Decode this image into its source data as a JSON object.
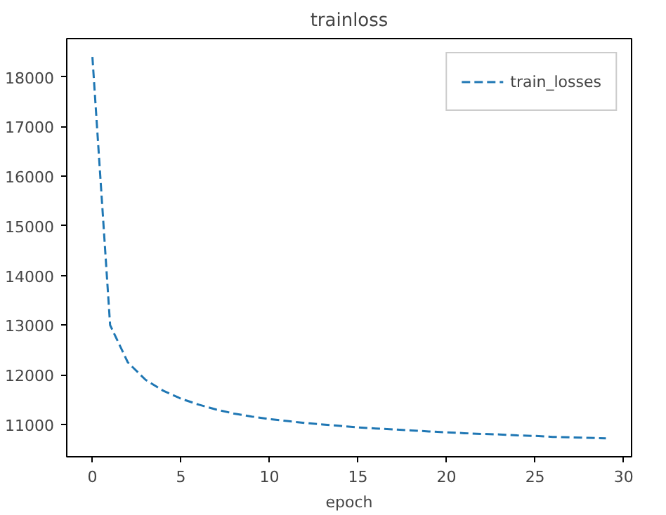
{
  "chart_data": {
    "type": "line",
    "title": "trainloss",
    "xlabel": "epoch",
    "x": [
      0,
      1,
      2,
      3,
      4,
      5,
      6,
      7,
      8,
      9,
      10,
      11,
      12,
      13,
      14,
      15,
      16,
      17,
      18,
      19,
      20,
      21,
      22,
      23,
      24,
      25,
      26,
      27,
      28,
      29
    ],
    "series": [
      {
        "name": "train_losses",
        "color": "#1f77b4",
        "values": [
          18400,
          13000,
          12250,
          11900,
          11680,
          11520,
          11400,
          11300,
          11220,
          11160,
          11110,
          11070,
          11030,
          11000,
          10970,
          10940,
          10920,
          10900,
          10880,
          10860,
          10840,
          10825,
          10810,
          10800,
          10780,
          10770,
          10750,
          10740,
          10730,
          10720
        ]
      }
    ],
    "xlim": [
      -1.45,
      30.45
    ],
    "ylim": [
      10350,
      18770
    ],
    "xticks": [
      0,
      5,
      10,
      15,
      20,
      25,
      30
    ],
    "yticks": [
      11000,
      12000,
      13000,
      14000,
      15000,
      16000,
      17000,
      18000
    ],
    "legend": "top right",
    "line_style": "dashed",
    "grid": false
  }
}
